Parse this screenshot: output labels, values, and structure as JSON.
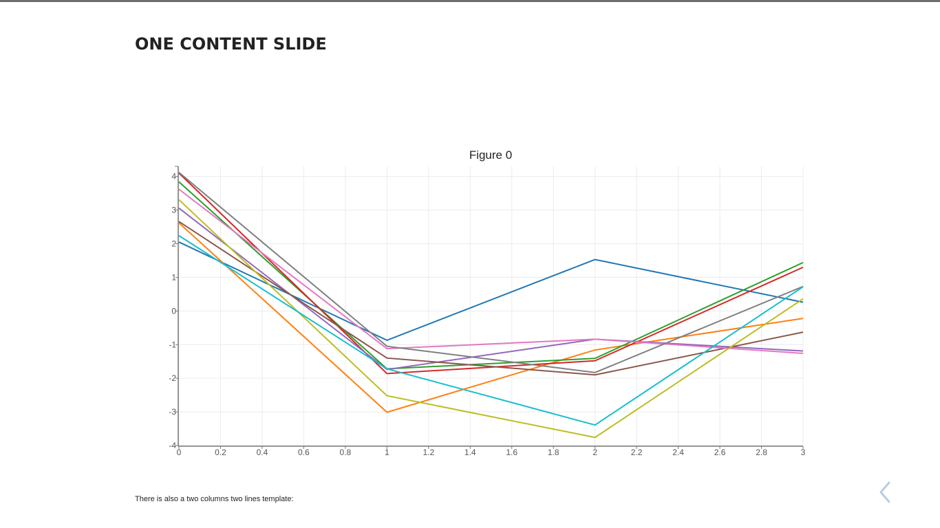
{
  "slide": {
    "title": "ONE CONTENT SLIDE",
    "footer_text": "There is also a two columns two lines template:"
  },
  "navigation": {
    "prev_icon": "chevron-left-icon",
    "prev_color": "#b9cde6"
  },
  "chart_data": {
    "type": "line",
    "title": "Figure 0",
    "xlabel": "",
    "ylabel": "",
    "x": [
      0,
      1,
      2,
      3
    ],
    "xlim": [
      0,
      3
    ],
    "ylim": [
      -4,
      4.3
    ],
    "x_ticks": [
      0,
      0.2,
      0.4,
      0.6,
      0.8,
      1,
      1.2,
      1.4,
      1.6,
      1.8,
      2,
      2.2,
      2.4,
      2.6,
      2.8,
      3
    ],
    "x_tick_labels": [
      "0",
      "0.2",
      "0.4",
      "0.6",
      "0.8",
      "1",
      "1.2",
      "1.4",
      "1.6",
      "1.8",
      "2",
      "2.2",
      "2.4",
      "2.6",
      "2.8",
      "3"
    ],
    "y_ticks": [
      -4,
      -3,
      -2,
      -1,
      0,
      1,
      2,
      3,
      4
    ],
    "y_tick_labels": [
      "-4",
      "-3",
      "-2",
      "-1",
      "0",
      "1",
      "2",
      "3",
      "4"
    ],
    "grid": true,
    "legend": "none",
    "series": [
      {
        "color": "#1f77b4",
        "values": [
          2.05,
          -0.87,
          1.53,
          0.26
        ]
      },
      {
        "color": "#ff7f0e",
        "values": [
          2.62,
          -3.01,
          -1.16,
          -0.22
        ]
      },
      {
        "color": "#2ca02c",
        "values": [
          3.84,
          -1.72,
          -1.41,
          1.44
        ]
      },
      {
        "color": "#d62728",
        "values": [
          4.1,
          -1.86,
          -1.48,
          1.3
        ]
      },
      {
        "color": "#9467bd",
        "values": [
          3.06,
          -1.74,
          -0.84,
          -1.19
        ]
      },
      {
        "color": "#8c564b",
        "values": [
          2.66,
          -1.4,
          -1.9,
          -0.63
        ]
      },
      {
        "color": "#e377c2",
        "values": [
          3.62,
          -1.12,
          -0.84,
          -1.26
        ]
      },
      {
        "color": "#7f7f7f",
        "values": [
          4.12,
          -1.05,
          -1.83,
          0.73
        ]
      },
      {
        "color": "#bcbd22",
        "values": [
          3.31,
          -2.52,
          -3.76,
          0.36
        ]
      },
      {
        "color": "#17becf",
        "values": [
          2.24,
          -1.72,
          -3.39,
          0.72
        ]
      }
    ]
  }
}
